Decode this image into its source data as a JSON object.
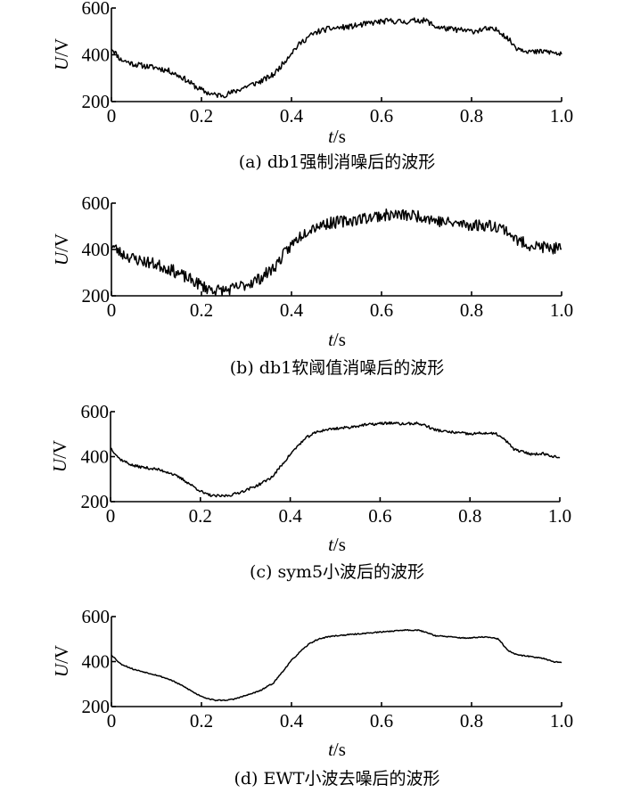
{
  "chart_data": [
    {
      "type": "line",
      "caption": "(a) db1强制消噪后的波形",
      "xlabel_var": "t",
      "xlabel_unit": "/s",
      "ylabel_var": "U",
      "ylabel_unit": "/V",
      "xlim": [
        0,
        1.0
      ],
      "ylim": [
        200,
        600
      ],
      "xticks": [
        "0",
        "0.2",
        "0.4",
        "0.6",
        "0.8",
        "1.0"
      ],
      "yticks": [
        "200",
        "400",
        "600"
      ],
      "series": [
        {
          "x": [
            0,
            0.02,
            0.05,
            0.08,
            0.1,
            0.13,
            0.16,
            0.19,
            0.21,
            0.23,
            0.25,
            0.27,
            0.3,
            0.33,
            0.36,
            0.38,
            0.4,
            0.42,
            0.44,
            0.46,
            0.48,
            0.5,
            0.53,
            0.56,
            0.59,
            0.62,
            0.65,
            0.68,
            0.7,
            0.72,
            0.75,
            0.78,
            0.8,
            0.83,
            0.86,
            0.88,
            0.9,
            0.92,
            0.94,
            0.96,
            0.98,
            1.0
          ],
          "values": [
            430,
            380,
            360,
            350,
            345,
            330,
            300,
            260,
            240,
            228,
            228,
            240,
            265,
            285,
            315,
            360,
            410,
            450,
            480,
            500,
            510,
            515,
            520,
            530,
            540,
            545,
            540,
            548,
            545,
            520,
            510,
            505,
            500,
            510,
            505,
            470,
            430,
            420,
            410,
            415,
            410,
            400
          ],
          "noise": 12,
          "seed": 11
        }
      ]
    },
    {
      "type": "line",
      "caption": "(b) db1软阈值消噪后的波形",
      "xlabel_var": "t",
      "xlabel_unit": "/s",
      "ylabel_var": "U",
      "ylabel_unit": "/V",
      "xlim": [
        0,
        1.0
      ],
      "ylim": [
        200,
        600
      ],
      "xticks": [
        "0",
        "0.2",
        "0.4",
        "0.6",
        "0.8",
        "1.0"
      ],
      "yticks": [
        "200",
        "400",
        "600"
      ],
      "series": [
        {
          "x": [
            0,
            0.02,
            0.05,
            0.08,
            0.1,
            0.13,
            0.16,
            0.19,
            0.21,
            0.23,
            0.25,
            0.27,
            0.3,
            0.33,
            0.36,
            0.38,
            0.4,
            0.42,
            0.44,
            0.46,
            0.48,
            0.5,
            0.53,
            0.56,
            0.59,
            0.62,
            0.65,
            0.68,
            0.7,
            0.72,
            0.75,
            0.78,
            0.8,
            0.83,
            0.86,
            0.88,
            0.9,
            0.92,
            0.94,
            0.96,
            0.98,
            1.0
          ],
          "values": [
            420,
            385,
            360,
            345,
            335,
            315,
            285,
            255,
            235,
            225,
            222,
            230,
            250,
            275,
            320,
            370,
            420,
            460,
            490,
            505,
            512,
            518,
            525,
            535,
            545,
            550,
            548,
            545,
            540,
            525,
            515,
            510,
            505,
            505,
            500,
            480,
            440,
            425,
            415,
            410,
            405,
            400
          ],
          "noise": 26,
          "seed": 23
        }
      ]
    },
    {
      "type": "line",
      "caption": "(c) sym5小波后的波形",
      "xlabel_var": "t",
      "xlabel_unit": "/s",
      "ylabel_var": "U",
      "ylabel_unit": "/V",
      "xlim": [
        0,
        1.0
      ],
      "ylim": [
        200,
        600
      ],
      "xticks": [
        "0",
        "0.2",
        "0.4",
        "0.6",
        "0.8",
        "1.0"
      ],
      "yticks": [
        "200",
        "400",
        "600"
      ],
      "series": [
        {
          "x": [
            0,
            0.02,
            0.05,
            0.08,
            0.1,
            0.13,
            0.16,
            0.19,
            0.21,
            0.23,
            0.25,
            0.27,
            0.3,
            0.33,
            0.36,
            0.38,
            0.4,
            0.42,
            0.44,
            0.46,
            0.48,
            0.5,
            0.53,
            0.56,
            0.59,
            0.62,
            0.65,
            0.68,
            0.7,
            0.72,
            0.75,
            0.78,
            0.8,
            0.83,
            0.86,
            0.88,
            0.9,
            0.92,
            0.94,
            0.96,
            0.98,
            1.0
          ],
          "values": [
            440,
            390,
            360,
            350,
            345,
            330,
            300,
            260,
            235,
            225,
            225,
            230,
            250,
            275,
            310,
            360,
            410,
            455,
            490,
            510,
            520,
            525,
            530,
            540,
            545,
            550,
            545,
            548,
            540,
            520,
            510,
            505,
            500,
            505,
            500,
            470,
            430,
            420,
            410,
            415,
            405,
            395
          ],
          "noise": 6,
          "seed": 37
        }
      ]
    },
    {
      "type": "line",
      "caption": "(d) EWT小波去噪后的波形",
      "xlabel_var": "t",
      "xlabel_unit": "/s",
      "ylabel_var": "U",
      "ylabel_unit": "/V",
      "xlim": [
        0,
        1.0
      ],
      "ylim": [
        200,
        600
      ],
      "xticks": [
        "0",
        "0.2",
        "0.4",
        "0.6",
        "0.8",
        "1.0"
      ],
      "yticks": [
        "200",
        "400",
        "600"
      ],
      "series": [
        {
          "x": [
            0,
            0.02,
            0.05,
            0.08,
            0.1,
            0.13,
            0.16,
            0.19,
            0.21,
            0.23,
            0.25,
            0.27,
            0.3,
            0.33,
            0.36,
            0.38,
            0.4,
            0.42,
            0.44,
            0.46,
            0.48,
            0.5,
            0.53,
            0.56,
            0.59,
            0.62,
            0.65,
            0.68,
            0.7,
            0.72,
            0.75,
            0.78,
            0.8,
            0.83,
            0.86,
            0.88,
            0.9,
            0.92,
            0.94,
            0.96,
            0.98,
            1.0
          ],
          "values": [
            430,
            390,
            365,
            350,
            340,
            320,
            290,
            255,
            238,
            228,
            228,
            232,
            250,
            270,
            305,
            355,
            405,
            445,
            480,
            500,
            510,
            515,
            520,
            525,
            530,
            535,
            540,
            540,
            530,
            515,
            510,
            505,
            505,
            510,
            500,
            450,
            430,
            425,
            420,
            415,
            400,
            395
          ],
          "noise": 2.5,
          "seed": 53
        }
      ]
    }
  ]
}
